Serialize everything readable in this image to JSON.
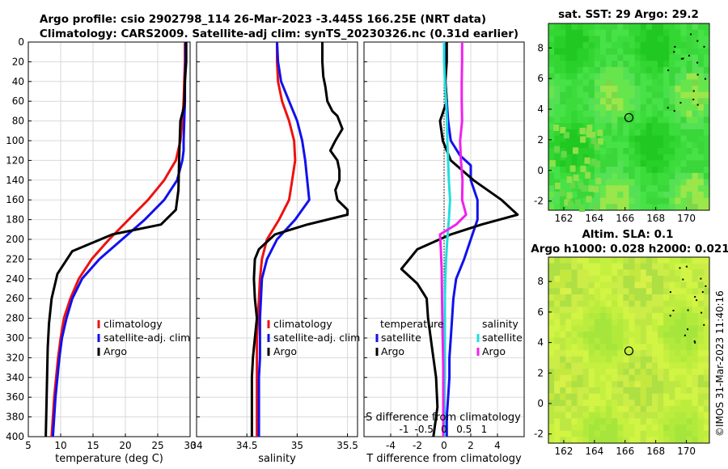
{
  "header": {
    "title_line1": "Argo profile: csio 2902798_114 26-Mar-2023 -3.445S 166.25E (NRT data)",
    "title_line2": "Climatology: CARS2009. Satellite-adj clim: synTS_20230326.nc (0.31d earlier)"
  },
  "side_credit": "©IMOS 31-Mar-2023 11:40:16",
  "colors": {
    "climatology": "#ee1111",
    "satellite": "#1111ee",
    "argo": "#000000",
    "sal_satellite": "#22dddd",
    "sal_argo": "#ee22ee",
    "grid": "#d9d9d9",
    "sst_map": "#33cc33",
    "sla_map": "#ccee33"
  },
  "chart_data": [
    {
      "id": "temperature",
      "type": "line",
      "xlabel": "temperature (deg C)",
      "ylabel": "",
      "xlim": [
        5,
        30
      ],
      "ylim": [
        0,
        400
      ],
      "y_inverted": true,
      "xticks": [
        5,
        10,
        15,
        20,
        25,
        30
      ],
      "yticks": [
        0,
        20,
        40,
        60,
        80,
        100,
        120,
        140,
        160,
        180,
        200,
        220,
        240,
        260,
        280,
        300,
        320,
        340,
        360,
        380,
        400
      ],
      "legend": [
        "climatology",
        "satellite-adj. clim",
        "Argo"
      ],
      "series": [
        {
          "name": "climatology",
          "color_key": "climatology",
          "points": [
            [
              29.2,
              0
            ],
            [
              29.2,
              20
            ],
            [
              29.1,
              40
            ],
            [
              29.0,
              60
            ],
            [
              28.8,
              80
            ],
            [
              28.5,
              100
            ],
            [
              27.8,
              120
            ],
            [
              26.0,
              140
            ],
            [
              23.5,
              160
            ],
            [
              20.5,
              180
            ],
            [
              17.5,
              200
            ],
            [
              14.8,
              220
            ],
            [
              12.8,
              240
            ],
            [
              11.5,
              260
            ],
            [
              10.5,
              280
            ],
            [
              10.0,
              300
            ],
            [
              9.6,
              320
            ],
            [
              9.3,
              340
            ],
            [
              9.0,
              360
            ],
            [
              8.8,
              380
            ],
            [
              8.6,
              400
            ]
          ]
        },
        {
          "name": "satellite-adj. clim",
          "color_key": "satellite",
          "points": [
            [
              29.3,
              0
            ],
            [
              29.3,
              20
            ],
            [
              29.2,
              40
            ],
            [
              29.2,
              60
            ],
            [
              29.1,
              80
            ],
            [
              29.0,
              100
            ],
            [
              29.0,
              110
            ],
            [
              28.8,
              120
            ],
            [
              28.0,
              140
            ],
            [
              26.0,
              160
            ],
            [
              23.0,
              180
            ],
            [
              19.5,
              200
            ],
            [
              16.0,
              220
            ],
            [
              13.3,
              240
            ],
            [
              11.8,
              260
            ],
            [
              10.9,
              280
            ],
            [
              10.2,
              300
            ],
            [
              9.8,
              320
            ],
            [
              9.5,
              340
            ],
            [
              9.2,
              360
            ],
            [
              9.0,
              380
            ],
            [
              8.8,
              400
            ]
          ]
        },
        {
          "name": "Argo",
          "color_key": "argo",
          "points": [
            [
              29.4,
              0
            ],
            [
              29.4,
              20
            ],
            [
              29.2,
              40
            ],
            [
              29.1,
              65
            ],
            [
              28.5,
              80
            ],
            [
              28.4,
              100
            ],
            [
              28.3,
              120
            ],
            [
              28.2,
              150
            ],
            [
              27.8,
              170
            ],
            [
              25.5,
              185
            ],
            [
              18.0,
              195
            ],
            [
              11.8,
              212
            ],
            [
              9.5,
              235
            ],
            [
              8.6,
              260
            ],
            [
              8.2,
              285
            ],
            [
              8.0,
              310
            ],
            [
              7.9,
              340
            ],
            [
              7.8,
              370
            ],
            [
              7.7,
              400
            ]
          ]
        }
      ]
    },
    {
      "id": "salinity",
      "type": "line",
      "xlabel": "salinity",
      "ylabel": "",
      "xlim": [
        34.0,
        35.6
      ],
      "ylim": [
        0,
        400
      ],
      "y_inverted": true,
      "xticks": [
        34,
        34.5,
        35,
        35.5
      ],
      "legend": [
        "climatology",
        "satellite-adj. clim",
        "Argo"
      ],
      "series": [
        {
          "name": "climatology",
          "color_key": "climatology",
          "points": [
            [
              34.8,
              0
            ],
            [
              34.8,
              20
            ],
            [
              34.81,
              40
            ],
            [
              34.85,
              60
            ],
            [
              34.92,
              80
            ],
            [
              34.97,
              100
            ],
            [
              34.98,
              120
            ],
            [
              34.95,
              140
            ],
            [
              34.92,
              160
            ],
            [
              34.82,
              180
            ],
            [
              34.7,
              200
            ],
            [
              34.65,
              220
            ],
            [
              34.63,
              240
            ],
            [
              34.62,
              260
            ],
            [
              34.61,
              280
            ],
            [
              34.6,
              300
            ],
            [
              34.6,
              320
            ],
            [
              34.6,
              340
            ],
            [
              34.6,
              360
            ],
            [
              34.6,
              380
            ],
            [
              34.6,
              400
            ]
          ]
        },
        {
          "name": "satellite-adj. clim",
          "color_key": "satellite",
          "points": [
            [
              34.8,
              0
            ],
            [
              34.81,
              20
            ],
            [
              34.84,
              40
            ],
            [
              34.92,
              60
            ],
            [
              35.0,
              80
            ],
            [
              35.05,
              100
            ],
            [
              35.08,
              120
            ],
            [
              35.1,
              140
            ],
            [
              35.12,
              160
            ],
            [
              34.98,
              180
            ],
            [
              34.8,
              200
            ],
            [
              34.7,
              220
            ],
            [
              34.65,
              240
            ],
            [
              34.64,
              260
            ],
            [
              34.63,
              280
            ],
            [
              34.63,
              300
            ],
            [
              34.63,
              320
            ],
            [
              34.62,
              340
            ],
            [
              34.62,
              360
            ],
            [
              34.62,
              380
            ],
            [
              34.62,
              400
            ]
          ]
        },
        {
          "name": "Argo",
          "color_key": "argo",
          "points": [
            [
              35.25,
              0
            ],
            [
              35.25,
              20
            ],
            [
              35.26,
              35
            ],
            [
              35.28,
              45
            ],
            [
              35.3,
              60
            ],
            [
              35.35,
              70
            ],
            [
              35.4,
              75
            ],
            [
              35.45,
              88
            ],
            [
              35.38,
              100
            ],
            [
              35.33,
              110
            ],
            [
              35.4,
              120
            ],
            [
              35.42,
              130
            ],
            [
              35.42,
              140
            ],
            [
              35.38,
              150
            ],
            [
              35.4,
              160
            ],
            [
              35.5,
              170
            ],
            [
              35.5,
              175
            ],
            [
              35.1,
              185
            ],
            [
              34.78,
              195
            ],
            [
              34.62,
              210
            ],
            [
              34.58,
              220
            ],
            [
              34.57,
              240
            ],
            [
              34.58,
              260
            ],
            [
              34.6,
              280
            ],
            [
              34.58,
              300
            ],
            [
              34.56,
              320
            ],
            [
              34.55,
              340
            ],
            [
              34.55,
              360
            ],
            [
              34.55,
              380
            ],
            [
              34.55,
              400
            ]
          ]
        }
      ]
    },
    {
      "id": "difference",
      "type": "line",
      "xlabel": "T difference from climatology",
      "xlabel2": "S difference from climatology",
      "xlim": [
        -6,
        6
      ],
      "ylim": [
        0,
        400
      ],
      "y_inverted": true,
      "xticks": [
        -4,
        -2,
        0,
        2,
        4
      ],
      "s_xticks": [
        -1,
        -0.5,
        0,
        0.5,
        1
      ],
      "s_tick_labels": [
        "-1",
        "-0.5",
        "0",
        "0.5",
        "1"
      ],
      "s_scale": 3,
      "legend_headers": [
        "temperature",
        "salinity"
      ],
      "legend": [
        "satellite",
        "Argo",
        "satellite",
        "Argo"
      ],
      "series": [
        {
          "name": "T satellite",
          "color_key": "satellite",
          "points": [
            [
              0.1,
              0
            ],
            [
              0.1,
              20
            ],
            [
              0.1,
              40
            ],
            [
              0.2,
              60
            ],
            [
              0.3,
              80
            ],
            [
              0.5,
              100
            ],
            [
              1.2,
              115
            ],
            [
              2.0,
              125
            ],
            [
              2.0,
              140
            ],
            [
              2.5,
              160
            ],
            [
              2.5,
              180
            ],
            [
              2.0,
              200
            ],
            [
              1.5,
              220
            ],
            [
              0.9,
              240
            ],
            [
              0.7,
              260
            ],
            [
              0.6,
              280
            ],
            [
              0.5,
              300
            ],
            [
              0.4,
              320
            ],
            [
              0.4,
              340
            ],
            [
              0.3,
              360
            ],
            [
              0.2,
              380
            ],
            [
              0.2,
              400
            ]
          ]
        },
        {
          "name": "T Argo",
          "color_key": "argo",
          "points": [
            [
              0.2,
              0
            ],
            [
              0.2,
              20
            ],
            [
              0.1,
              40
            ],
            [
              0.2,
              60
            ],
            [
              -0.3,
              80
            ],
            [
              -0.1,
              100
            ],
            [
              0.5,
              120
            ],
            [
              2.2,
              140
            ],
            [
              4.3,
              160
            ],
            [
              5.5,
              175
            ],
            [
              2.8,
              185
            ],
            [
              0.5,
              195
            ],
            [
              -2.0,
              210
            ],
            [
              -3.2,
              230
            ],
            [
              -2.0,
              245
            ],
            [
              -1.3,
              260
            ],
            [
              -1.2,
              280
            ],
            [
              -0.9,
              310
            ],
            [
              -0.6,
              340
            ],
            [
              -0.5,
              370
            ],
            [
              -0.8,
              400
            ]
          ]
        },
        {
          "name": "S satellite",
          "color_key": "sal_satellite",
          "points": [
            [
              0.0,
              0
            ],
            [
              0.0,
              20
            ],
            [
              0.02,
              40
            ],
            [
              0.05,
              60
            ],
            [
              0.07,
              80
            ],
            [
              0.08,
              100
            ],
            [
              0.1,
              120
            ],
            [
              0.12,
              140
            ],
            [
              0.15,
              160
            ],
            [
              0.12,
              180
            ],
            [
              0.08,
              200
            ],
            [
              0.05,
              220
            ],
            [
              0.03,
              240
            ],
            [
              0.02,
              260
            ],
            [
              0.02,
              280
            ],
            [
              0.02,
              300
            ],
            [
              0.02,
              320
            ],
            [
              0.02,
              340
            ],
            [
              0.01,
              360
            ],
            [
              0.01,
              380
            ],
            [
              0.01,
              400
            ]
          ]
        },
        {
          "name": "S Argo",
          "color_key": "sal_argo",
          "points": [
            [
              0.45,
              0
            ],
            [
              0.45,
              20
            ],
            [
              0.44,
              40
            ],
            [
              0.44,
              60
            ],
            [
              0.45,
              80
            ],
            [
              0.4,
              100
            ],
            [
              0.42,
              120
            ],
            [
              0.46,
              140
            ],
            [
              0.45,
              160
            ],
            [
              0.55,
              175
            ],
            [
              0.3,
              185
            ],
            [
              -0.1,
              195
            ],
            [
              -0.08,
              210
            ],
            [
              -0.06,
              230
            ],
            [
              -0.05,
              260
            ],
            [
              -0.04,
              290
            ],
            [
              -0.02,
              330
            ],
            [
              -0.02,
              360
            ],
            [
              -0.02,
              400
            ]
          ]
        }
      ]
    },
    {
      "id": "sst_map",
      "type": "heatmap",
      "title": "sat. SST: 29 Argo: 29.2",
      "xticks": [
        162,
        164,
        166,
        168,
        170
      ],
      "yticks": [
        -2,
        0,
        2,
        4,
        6,
        8
      ],
      "xlim": [
        161,
        171.5
      ],
      "ylim": [
        -2.6,
        9.6
      ],
      "marker": [
        166.25,
        -3.445
      ],
      "marker_plot_lat": 3.45
    },
    {
      "id": "sla_map",
      "type": "heatmap",
      "title": "Altim. SLA: 0.1",
      "title2": "Argo h1000: 0.028 h2000: 0.021",
      "xticks": [
        162,
        164,
        166,
        168,
        170
      ],
      "yticks": [
        -2,
        0,
        2,
        4,
        6,
        8
      ],
      "xlim": [
        161,
        171.5
      ],
      "ylim": [
        -2.6,
        9.6
      ],
      "marker": [
        166.25,
        -3.445
      ],
      "marker_plot_lat": 3.45
    }
  ]
}
